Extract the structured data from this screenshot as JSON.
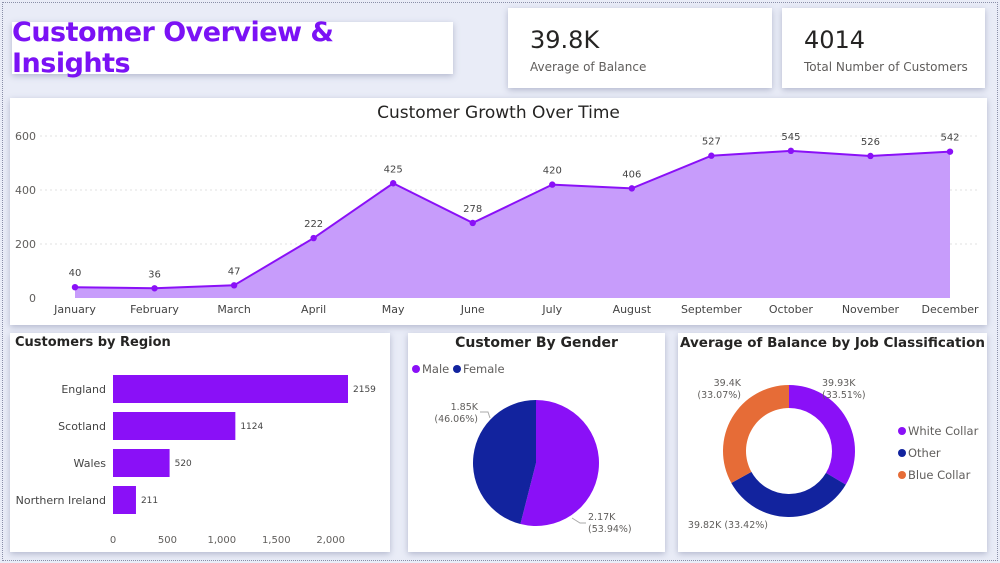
{
  "header": {
    "title": "Customer Overview & Insights"
  },
  "kpis": [
    {
      "value": "39.8K",
      "label": "Average of Balance"
    },
    {
      "value": "4014",
      "label": "Total Number of Customers"
    }
  ],
  "colors": {
    "purple": "#8a10f7",
    "area": "#c79cfb",
    "navy": "#12239e",
    "orange": "#e66c37"
  },
  "chart_data": [
    {
      "type": "area",
      "title": "Customer Growth Over Time",
      "categories": [
        "January",
        "February",
        "March",
        "April",
        "May",
        "June",
        "July",
        "August",
        "September",
        "October",
        "November",
        "December"
      ],
      "values": [
        40,
        36,
        47,
        222,
        425,
        278,
        420,
        406,
        527,
        545,
        526,
        542
      ],
      "yticks": [
        0,
        200,
        400,
        600
      ],
      "ylim": [
        0,
        600
      ]
    },
    {
      "type": "bar",
      "title": "Customers by Region",
      "categories": [
        "England",
        "Scotland",
        "Wales",
        "Northern Ireland"
      ],
      "values": [
        2159,
        1124,
        520,
        211
      ],
      "xticks": [
        0,
        500,
        1000,
        1500,
        2000
      ],
      "xtick_labels": [
        "0",
        "500",
        "1,000",
        "1,500",
        "2,000"
      ],
      "xlim": [
        0,
        2159
      ]
    },
    {
      "type": "pie",
      "title": "Customer By Gender",
      "legend": [
        "Male",
        "Female"
      ],
      "values": [
        2.17,
        1.85
      ],
      "labels": [
        [
          "2.17K",
          "(53.94%)"
        ],
        [
          "1.85K",
          "(46.06%)"
        ]
      ]
    },
    {
      "type": "pie",
      "title": "Average of Balance by Job Classification",
      "legend": [
        "White Collar",
        "Other",
        "Blue Collar"
      ],
      "values": [
        39.93,
        39.82,
        39.4
      ],
      "labels": [
        [
          "39.93K",
          "(33.51%)"
        ],
        [
          "39.82K (33.42%)"
        ],
        [
          "39.4K",
          "(33.07%)"
        ]
      ]
    }
  ]
}
